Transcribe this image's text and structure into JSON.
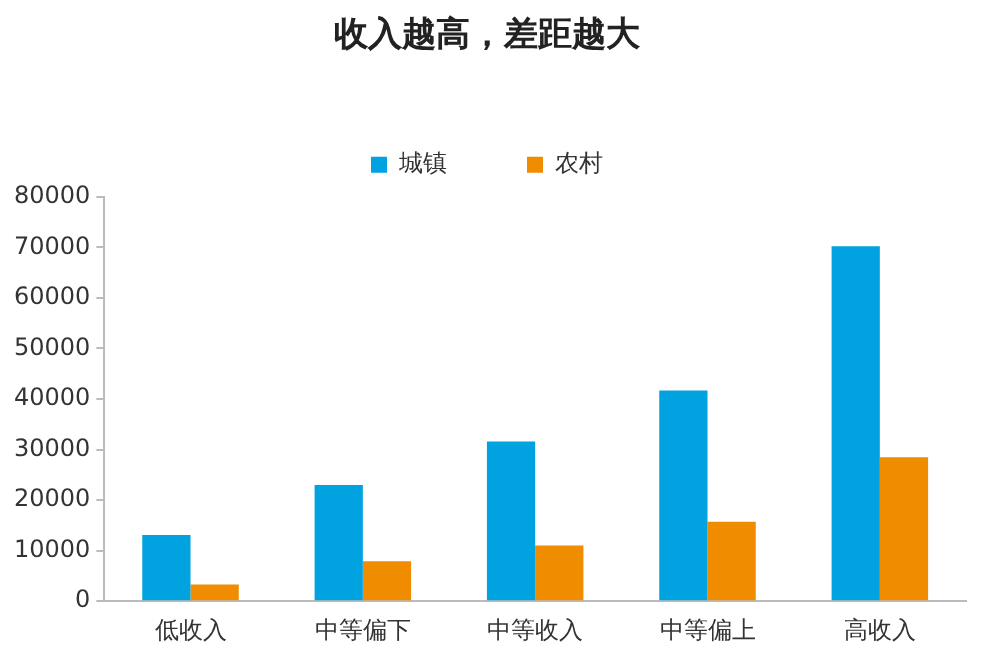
{
  "chart_data": {
    "type": "bar",
    "title": "收入越高，差距越大",
    "categories": [
      "低收入",
      "中等偏下",
      "中等收入",
      "中等偏上",
      "高收入"
    ],
    "series": [
      {
        "name": "城镇",
        "color": "#00a2e0",
        "values": [
          13100,
          23000,
          31600,
          41700,
          70200
        ]
      },
      {
        "name": "农村",
        "color": "#f08c00",
        "values": [
          3300,
          7900,
          11000,
          15700,
          28500
        ]
      }
    ],
    "ylim": [
      0,
      80000
    ],
    "yticks": [
      0,
      10000,
      20000,
      30000,
      40000,
      50000,
      60000,
      70000,
      80000
    ],
    "grid": false,
    "legend": "top"
  }
}
